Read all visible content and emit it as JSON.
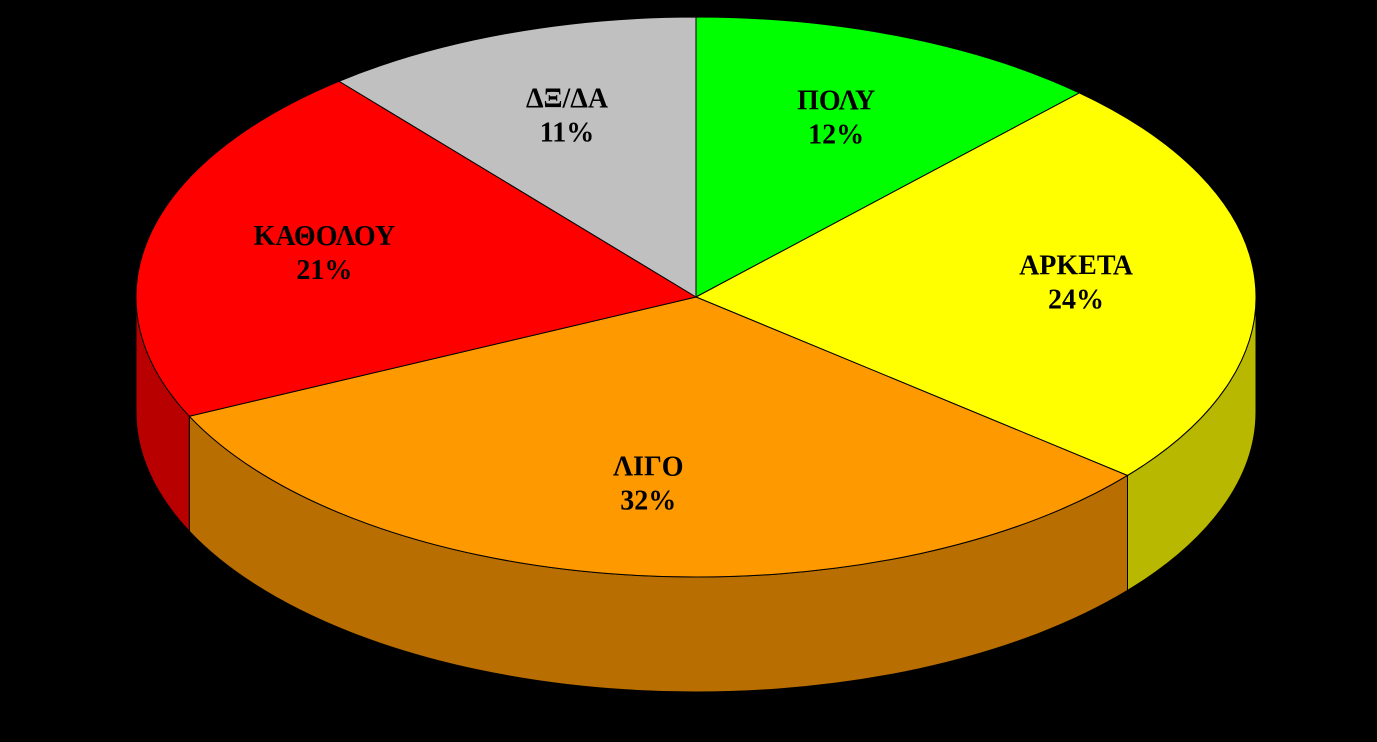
{
  "chart_data": {
    "type": "pie",
    "categories": [
      "ΠΟΛΥ",
      "ΑΡΚΕΤΑ",
      "ΛΙΓΟ",
      "ΚΑΘΟΛΟΥ",
      "ΔΞ/ΔΑ"
    ],
    "values": [
      12,
      24,
      32,
      21,
      11
    ],
    "value_labels": [
      "12%",
      "24%",
      "32%",
      "21%",
      "11%"
    ],
    "colors": [
      "#00ff00",
      "#ffff00",
      "#ff9900",
      "#ff0000",
      "#c0c0c0"
    ]
  }
}
